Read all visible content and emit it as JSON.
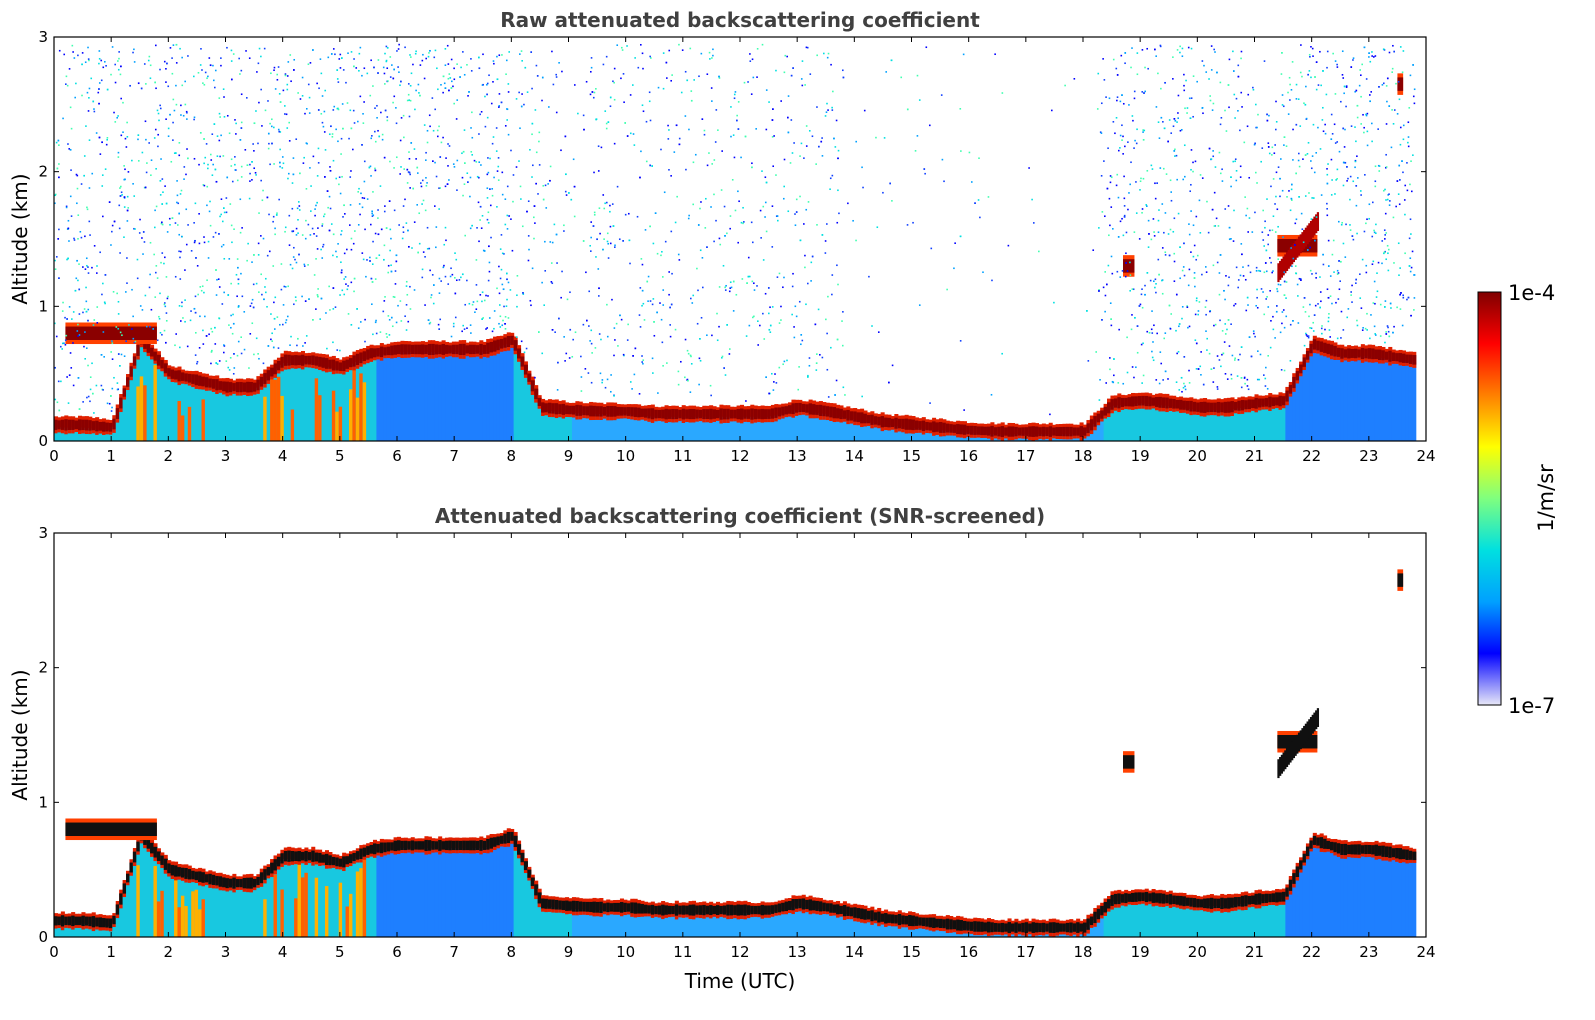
{
  "chart_data": [
    {
      "type": "heatmap",
      "title": "Raw attenuated backscattering coefficient",
      "xlabel": "",
      "ylabel": "Altitude (km)",
      "xlim": [
        0,
        24
      ],
      "ylim": [
        0,
        3
      ],
      "x_ticks": [
        "0",
        "1",
        "2",
        "3",
        "4",
        "5",
        "6",
        "7",
        "8",
        "9",
        "10",
        "11",
        "12",
        "13",
        "14",
        "15",
        "16",
        "17",
        "18",
        "19",
        "20",
        "21",
        "22",
        "23",
        "24"
      ],
      "y_ticks": [
        "0",
        "1",
        "2",
        "3"
      ],
      "layer_hours": [
        0,
        0.5,
        1,
        1.5,
        2,
        2.5,
        3,
        3.5,
        4,
        4.5,
        5,
        5.5,
        6,
        6.5,
        7,
        7.5,
        8,
        8.5,
        9,
        9.5,
        10,
        10.5,
        11,
        11.5,
        12,
        12.5,
        13,
        13.5,
        14,
        14.5,
        15,
        15.5,
        16,
        16.5,
        17,
        17.5,
        18,
        18.5,
        19,
        19.5,
        20,
        20.5,
        21,
        21.5,
        22,
        22.5,
        23,
        23.5,
        23.8
      ],
      "main_layer_altitude_km": [
        0.12,
        0.12,
        0.1,
        0.75,
        0.5,
        0.45,
        0.4,
        0.4,
        0.6,
        0.6,
        0.55,
        0.65,
        0.68,
        0.68,
        0.68,
        0.68,
        0.75,
        0.25,
        0.23,
        0.22,
        0.22,
        0.2,
        0.2,
        0.2,
        0.2,
        0.2,
        0.25,
        0.22,
        0.18,
        0.14,
        0.12,
        0.1,
        0.08,
        0.07,
        0.07,
        0.07,
        0.07,
        0.28,
        0.3,
        0.28,
        0.25,
        0.25,
        0.28,
        0.3,
        0.72,
        0.65,
        0.65,
        0.62,
        0.6
      ],
      "elevated_layers": [
        {
          "x_range": [
            0.2,
            1.8
          ],
          "altitude_km": 0.8
        },
        {
          "x_range": [
            18.7,
            18.9
          ],
          "altitude_km": 1.3
        },
        {
          "x_range": [
            21.4,
            22.1
          ],
          "altitude_km": 1.45
        },
        {
          "x_range": [
            23.5,
            23.6
          ],
          "altitude_km": 2.65
        }
      ],
      "noise": "high"
    },
    {
      "type": "heatmap",
      "title": "Attenuated backscattering coefficient (SNR-screened)",
      "xlabel": "Time (UTC)",
      "ylabel": "Altitude (km)",
      "xlim": [
        0,
        24
      ],
      "ylim": [
        0,
        3
      ],
      "x_ticks": [
        "0",
        "1",
        "2",
        "3",
        "4",
        "5",
        "6",
        "7",
        "8",
        "9",
        "10",
        "11",
        "12",
        "13",
        "14",
        "15",
        "16",
        "17",
        "18",
        "19",
        "20",
        "21",
        "22",
        "23",
        "24"
      ],
      "y_ticks": [
        "0",
        "1",
        "2",
        "3"
      ],
      "noise": "screened"
    }
  ],
  "colorbar": {
    "label": "1/m/sr",
    "max_label": "1e-4",
    "min_label": "1e-7",
    "colormap": "jet",
    "colors": [
      "#e8e8f8",
      "#0000ff",
      "#00a0ff",
      "#00e0e0",
      "#7fff7f",
      "#ffff00",
      "#ff8000",
      "#ff0000",
      "#800000"
    ]
  }
}
